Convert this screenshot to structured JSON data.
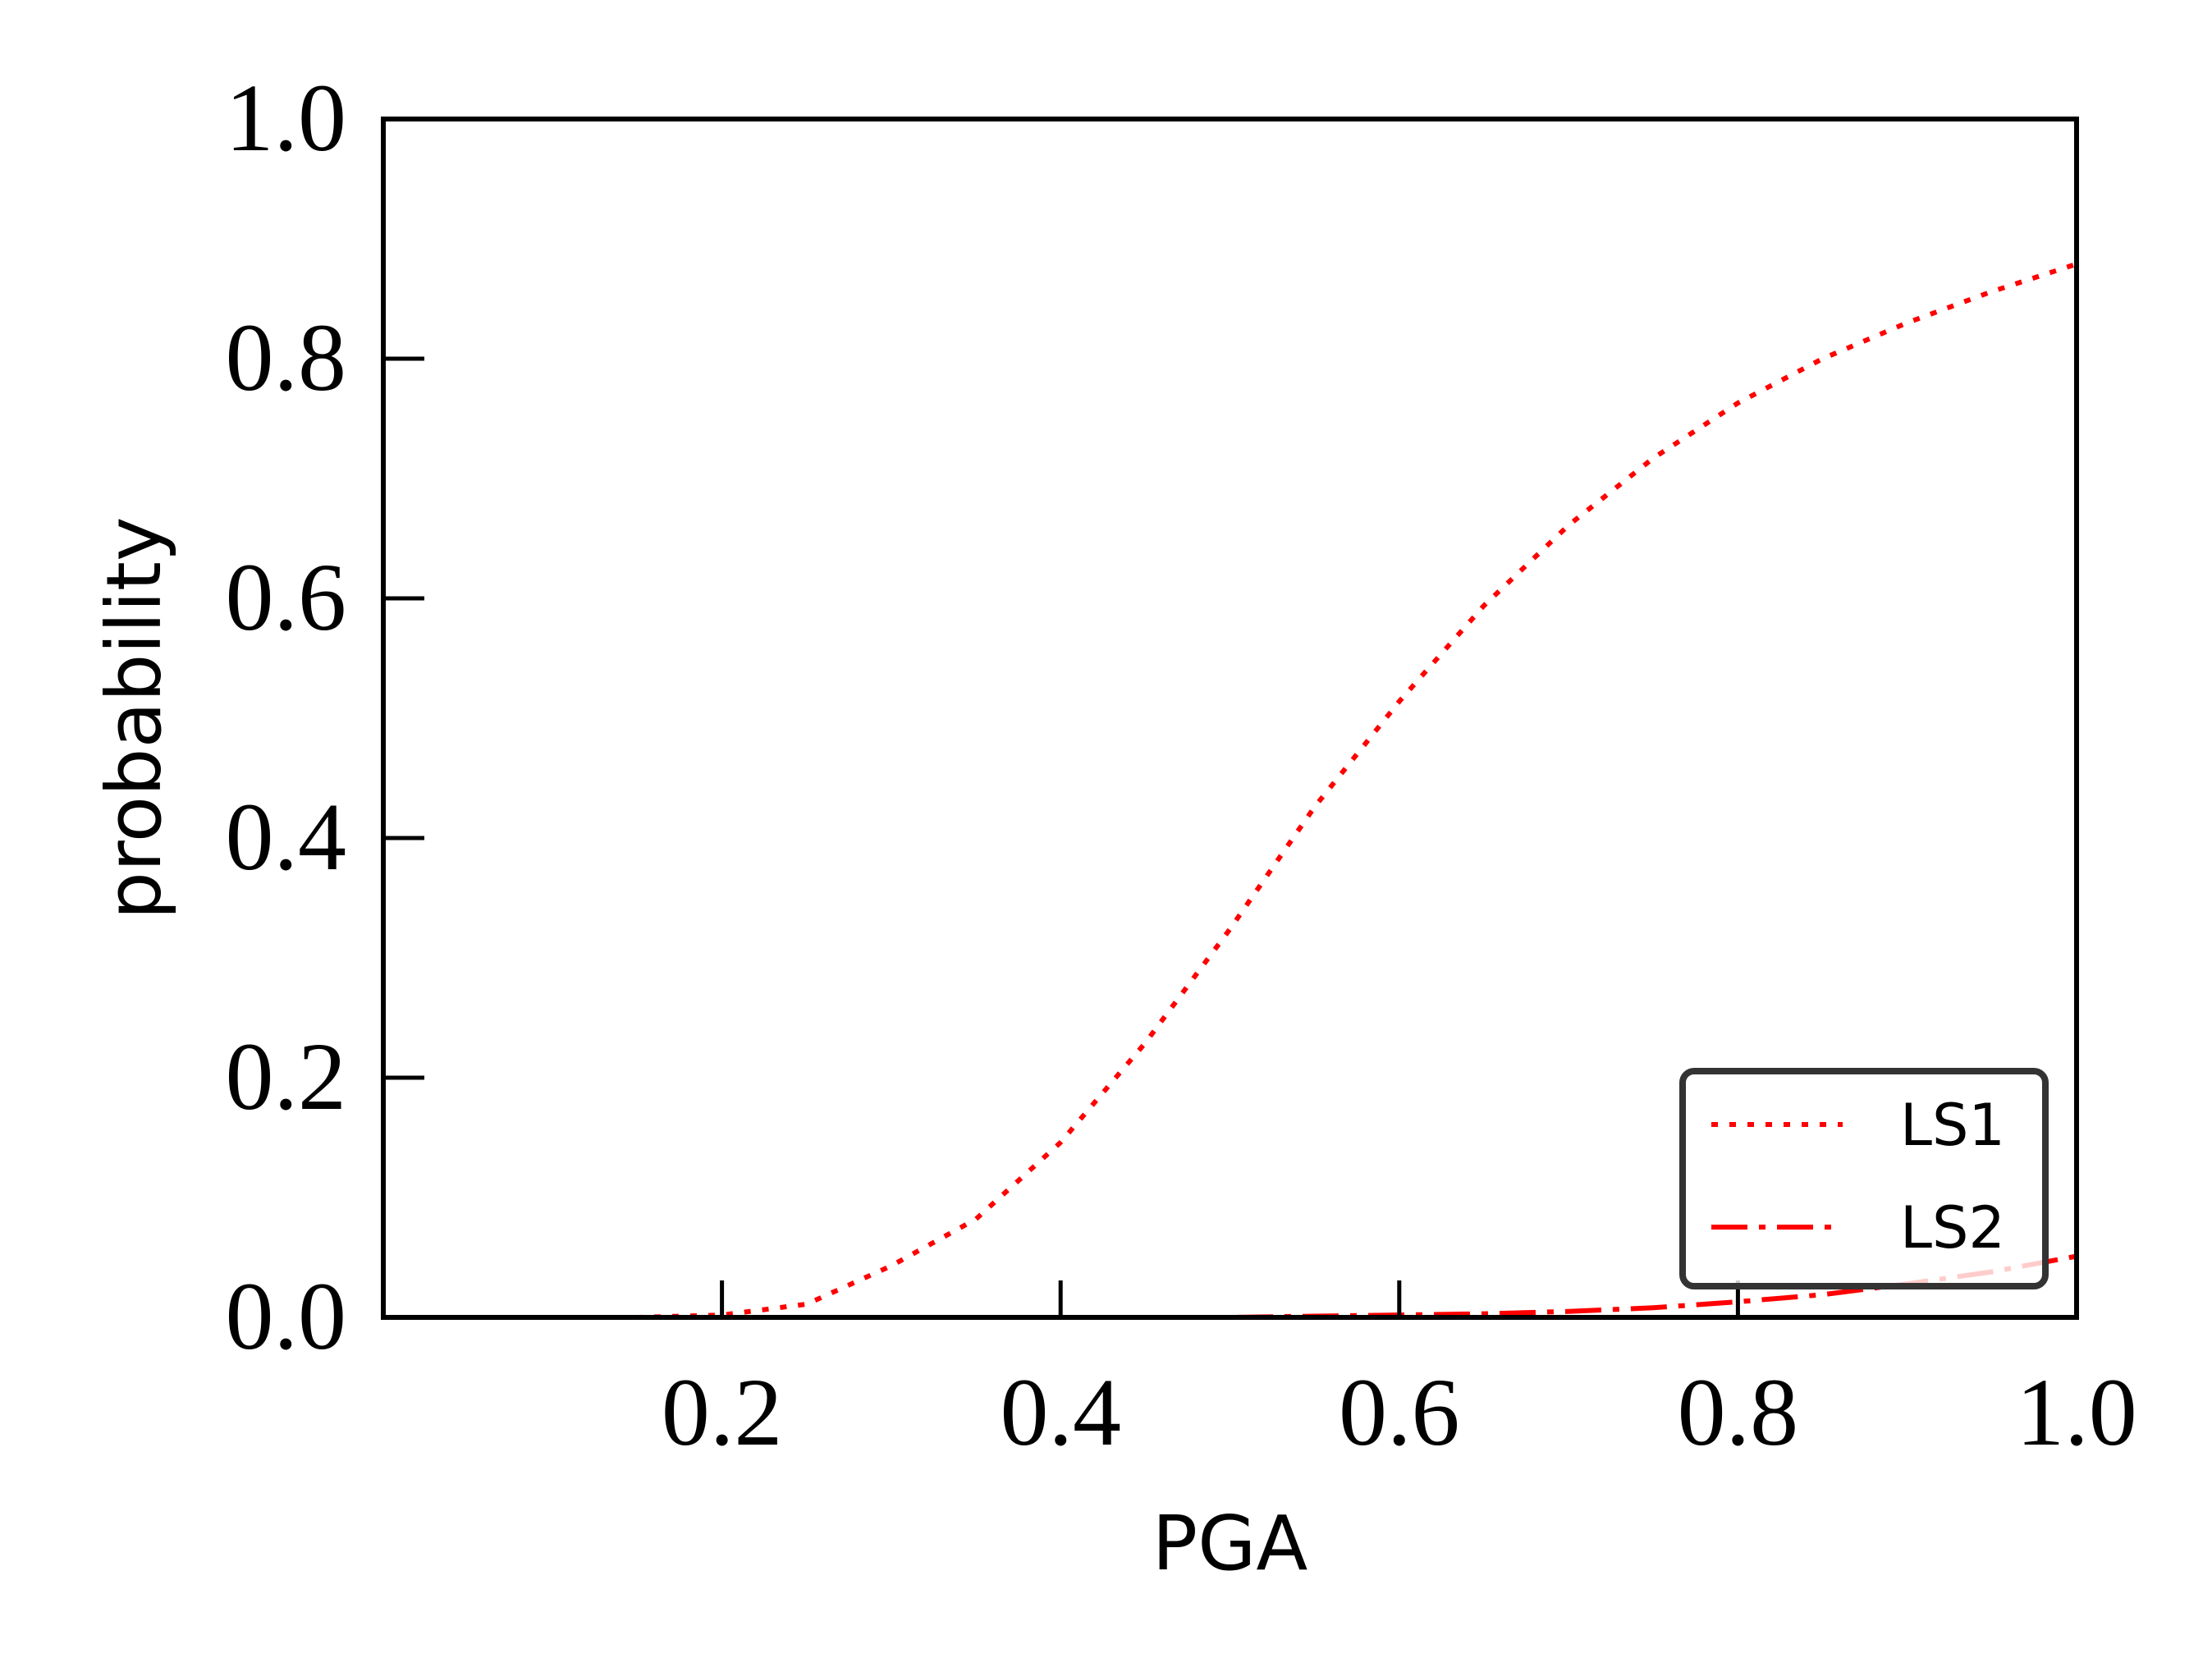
{
  "chart_data": {
    "type": "line",
    "xlabel": "PGA",
    "ylabel": "probability",
    "xlim": [
      0.0,
      1.0
    ],
    "ylim": [
      0.0,
      1.0
    ],
    "xticks": [
      "0.2",
      "0.4",
      "0.6",
      "0.8",
      "1.0"
    ],
    "yticks": [
      "0.0",
      "0.2",
      "0.4",
      "0.6",
      "0.8",
      "1.0"
    ],
    "grid": false,
    "legend_position": "lower-right",
    "x": [
      0.0,
      0.05,
      0.1,
      0.15,
      0.2,
      0.25,
      0.3,
      0.35,
      0.4,
      0.45,
      0.5,
      0.55,
      0.6,
      0.65,
      0.7,
      0.75,
      0.8,
      0.85,
      0.9,
      0.95,
      1.0
    ],
    "series": [
      {
        "name": "LS1",
        "color": "#ff0000",
        "style": "dotted",
        "values": [
          0.0,
          0.0,
          0.0,
          0.0,
          0.002,
          0.011,
          0.043,
          0.082,
          0.146,
          0.229,
          0.324,
          0.426,
          0.514,
          0.594,
          0.661,
          0.717,
          0.763,
          0.8,
          0.83,
          0.856,
          0.879
        ]
      },
      {
        "name": "LS2",
        "color": "#ff0000",
        "style": "dashdot",
        "values": [
          0.0,
          0.0,
          0.0,
          0.0,
          0.0,
          0.0,
          0.0,
          0.0,
          0.0,
          0.0,
          0.0,
          0.001,
          0.002,
          0.003,
          0.005,
          0.008,
          0.013,
          0.019,
          0.028,
          0.038,
          0.051
        ]
      }
    ]
  }
}
